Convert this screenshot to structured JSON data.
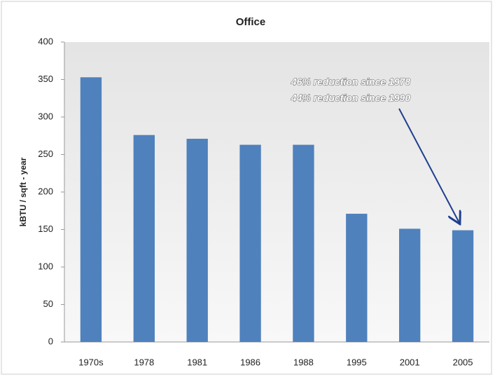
{
  "chart_data": {
    "type": "bar",
    "title": "Office",
    "y_label": "kBTU / sqft - year",
    "categories": [
      "1970s",
      "1978",
      "1981",
      "1986",
      "1988",
      "1995",
      "2001",
      "2005"
    ],
    "values": [
      353,
      276,
      271,
      263,
      263,
      171,
      151,
      149
    ],
    "color": "#4f81bd",
    "ylim": [
      0,
      400
    ],
    "yticks": [
      0,
      50,
      100,
      150,
      200,
      250,
      300,
      350,
      400
    ],
    "grid": false,
    "annotations": [
      "46% reduction since 1978",
      "44% reduction since 1990"
    ]
  }
}
